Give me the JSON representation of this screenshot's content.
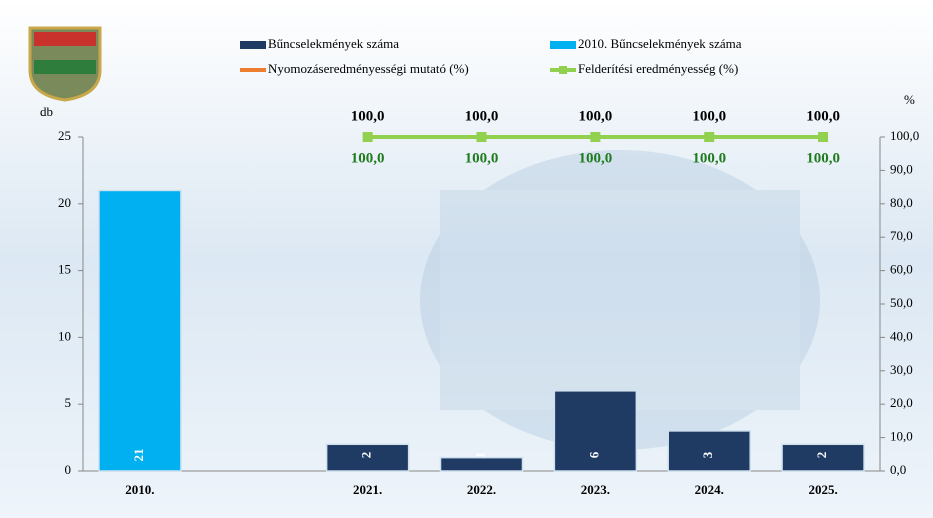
{
  "chart_data": {
    "type": "bar",
    "categories": [
      "2010.",
      null,
      "2021.",
      "2022.",
      "2023.",
      "2024.",
      "2025."
    ],
    "series": [
      {
        "name": "Bűncselekmények száma",
        "color": "#1f3b63",
        "values": [
          null,
          null,
          2,
          1,
          6,
          3,
          2
        ]
      },
      {
        "name": "2010. Bűncselekmények száma",
        "color": "#00b0f0",
        "values": [
          21,
          null,
          null,
          null,
          null,
          null,
          null
        ]
      },
      {
        "name": "Nyomozáseredményességi mutató (%)",
        "color": "#ed7d31",
        "axis": "y2",
        "type": "line",
        "values": [
          null,
          null,
          100,
          100,
          100,
          100,
          100
        ],
        "value_labels": [
          null,
          null,
          "100,0",
          "100,0",
          "100,0",
          "100,0",
          "100,0"
        ],
        "label_color": "#000000"
      },
      {
        "name": "Felderítési eredményesség (%)",
        "color": "#92d050",
        "axis": "y2",
        "type": "line",
        "values": [
          null,
          null,
          100,
          100,
          100,
          100,
          100
        ],
        "value_labels": [
          null,
          null,
          "100,0",
          "100,0",
          "100,0",
          "100,0",
          "100,0"
        ],
        "label_color": "#1e7b1e"
      }
    ],
    "ylabel": "db",
    "y2label": "%",
    "ylim": [
      0,
      25
    ],
    "yticks": [
      0,
      5,
      10,
      15,
      20,
      25
    ],
    "y2lim": [
      0,
      100
    ],
    "y2ticks": [
      {
        "value": 0,
        "label": "0,0"
      },
      {
        "value": 10,
        "label": "10,0"
      },
      {
        "value": 20,
        "label": "20,0"
      },
      {
        "value": 30,
        "label": "30,0"
      },
      {
        "value": 40,
        "label": "40,0"
      },
      {
        "value": 50,
        "label": "50,0"
      },
      {
        "value": 60,
        "label": "60,0"
      },
      {
        "value": 70,
        "label": "70,0"
      },
      {
        "value": 80,
        "label": "80,0"
      },
      {
        "value": 90,
        "label": "90,0"
      },
      {
        "value": 100,
        "label": "100,0"
      }
    ]
  }
}
